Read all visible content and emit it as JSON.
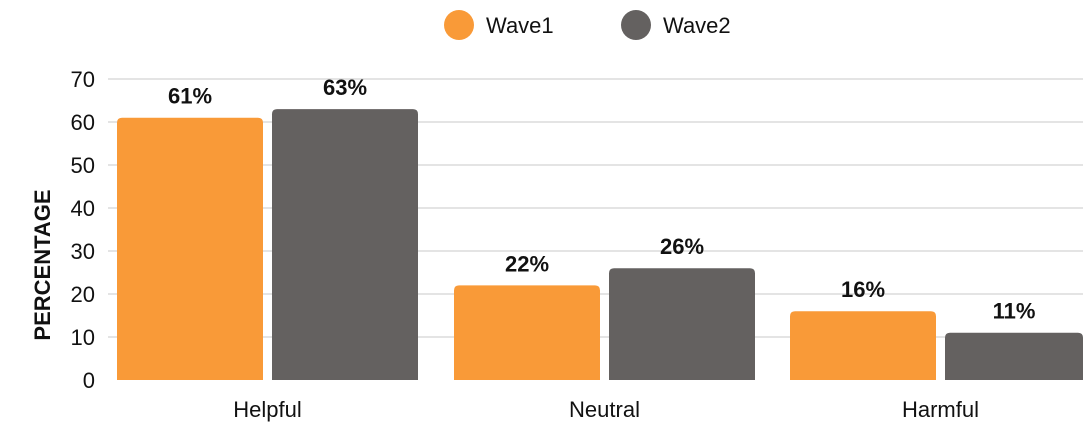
{
  "chart_data": {
    "type": "bar",
    "title": "",
    "xlabel": "",
    "ylabel": "PERCENTAGE",
    "ylim": [
      0,
      70
    ],
    "yticks": [
      0,
      10,
      20,
      30,
      40,
      50,
      60,
      70
    ],
    "grid": true,
    "legend_position": "top-center",
    "categories": [
      "Helpful",
      "Neutral",
      "Harmful"
    ],
    "series": [
      {
        "name": "Wave1",
        "color": "#F99A38",
        "values": [
          61,
          22,
          16
        ],
        "labels": [
          "61%",
          "22%",
          "16%"
        ]
      },
      {
        "name": "Wave2",
        "color": "#646160",
        "values": [
          63,
          26,
          11
        ],
        "labels": [
          "63%",
          "26%",
          "11%"
        ]
      }
    ]
  }
}
